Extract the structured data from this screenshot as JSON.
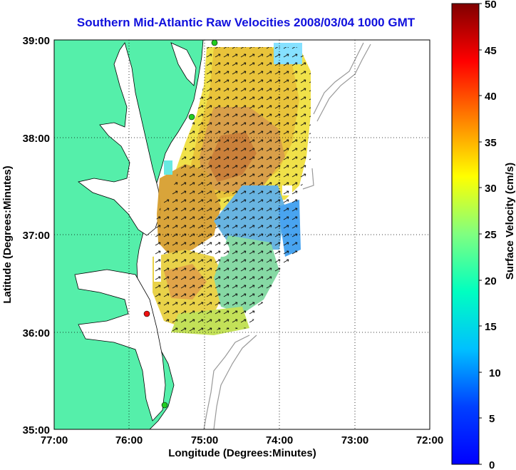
{
  "title": "Southern Mid-Atlantic Raw Velocities 2008/03/04 1000 GMT",
  "map": {
    "xlabel": "Longitude (Degrees:Minutes)",
    "ylabel": "Latitude (Degrees:Minutes)",
    "x_ticks": [
      "77:00",
      "76:00",
      "75:00",
      "74:00",
      "73:00",
      "72:00"
    ],
    "y_ticks": [
      "39:00",
      "38:00",
      "37:00",
      "36:00",
      "35:00"
    ],
    "land_color": "#55efaa",
    "coast_color": "#000000",
    "bathymetry_color": "#999999"
  },
  "colorbar": {
    "label": "Surface Velocity (cm/s)",
    "ticks": [
      "50",
      "45",
      "40",
      "35",
      "30",
      "25",
      "20",
      "15",
      "10",
      "5",
      "0"
    ],
    "range": [
      0,
      50
    ],
    "colormap": "jet"
  },
  "stations": [
    {
      "status": "active",
      "color": "#22cc22"
    },
    {
      "status": "active",
      "color": "#22cc22"
    },
    {
      "status": "offline",
      "color": "#ee1111"
    },
    {
      "status": "active",
      "color": "#22cc22"
    }
  ]
}
